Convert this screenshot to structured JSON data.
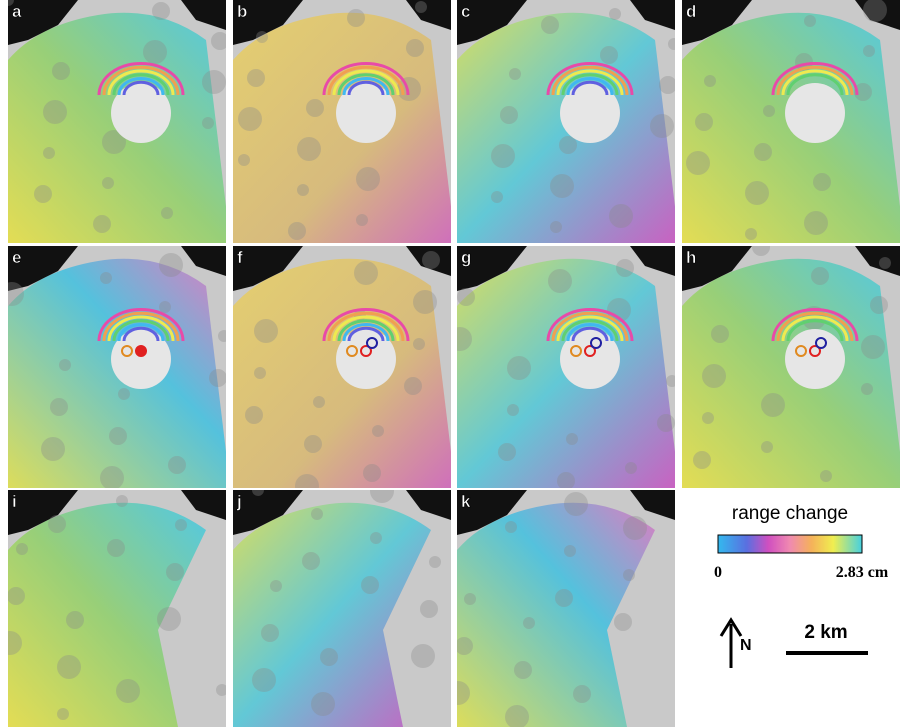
{
  "panels": [
    {
      "label": "a"
    },
    {
      "label": "b"
    },
    {
      "label": "c"
    },
    {
      "label": "d"
    },
    {
      "label": "e"
    },
    {
      "label": "f"
    },
    {
      "label": "g"
    },
    {
      "label": "h"
    },
    {
      "label": "i"
    },
    {
      "label": "j"
    },
    {
      "label": "k"
    }
  ],
  "legend": {
    "title": "range change",
    "min_label": "0",
    "max_label": "2.83 cm"
  },
  "north_label": "N",
  "scale_label": "2 km"
}
